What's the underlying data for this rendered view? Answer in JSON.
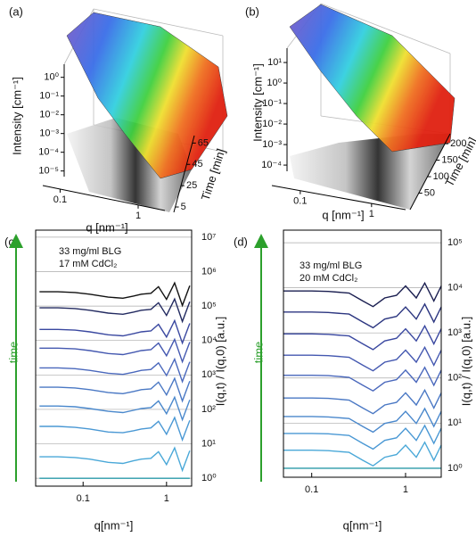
{
  "chart_data": [
    {
      "type": "surface3d",
      "panel_label": "(a)",
      "zlabel": "Intensity [cm⁻¹]",
      "xlabel": "q [nm⁻¹]",
      "ylabel": "Time [min]",
      "zscale": "log",
      "zlim": [
        5e-06,
        5
      ],
      "zticks": [
        {
          "value": 1,
          "label": "10⁰"
        },
        {
          "value": 0.1,
          "label": "10⁻¹"
        },
        {
          "value": 0.01,
          "label": "10⁻²"
        },
        {
          "value": 0.001,
          "label": "10⁻³"
        },
        {
          "value": 0.0001,
          "label": "10⁻⁴"
        },
        {
          "value": 1e-05,
          "label": "10⁻⁵"
        }
      ],
      "xscale": "log",
      "xlim": [
        0.06,
        2.2
      ],
      "xticks": [
        0.1,
        1
      ],
      "ylim": [
        0,
        72
      ],
      "yticks": [
        5,
        25,
        45,
        65
      ]
    },
    {
      "type": "surface3d",
      "panel_label": "(b)",
      "zlabel": "Intensity [cm⁻¹]",
      "xlabel": "q [nm⁻¹]",
      "ylabel": "Time [min]",
      "zscale": "log",
      "zlim": [
        5e-05,
        50
      ],
      "zticks": [
        {
          "value": 10,
          "label": "10¹"
        },
        {
          "value": 1,
          "label": "10⁰"
        },
        {
          "value": 0.1,
          "label": "10⁻¹"
        },
        {
          "value": 0.01,
          "label": "10⁻²"
        },
        {
          "value": 0.001,
          "label": "10⁻³"
        },
        {
          "value": 0.0001,
          "label": "10⁻⁴"
        }
      ],
      "xscale": "log",
      "xlim": [
        0.04,
        3
      ],
      "xticks": [
        0.1,
        1
      ],
      "ylim": [
        0,
        230
      ],
      "yticks": [
        50,
        100,
        150,
        200
      ]
    },
    {
      "type": "line",
      "panel_label": "(c)",
      "annotations": [
        "33 mg/ml BLG",
        "17 mM CdCl₂"
      ],
      "xlabel": "q[nm⁻¹]",
      "ylabel": "I(q,t) / I(q,0) [a.u.]",
      "time_label": "time",
      "xscale": "log",
      "yscale": "log",
      "grid": true,
      "xlim": [
        0.027,
        2
      ],
      "xticks": [
        0.1,
        1
      ],
      "ylim": [
        0.59,
        16000000
      ],
      "yticks": [
        {
          "value": 1,
          "label": "10⁰"
        },
        {
          "value": 10,
          "label": "10¹"
        },
        {
          "value": 100,
          "label": "10²"
        },
        {
          "value": 1000,
          "label": "10³"
        },
        {
          "value": 10000,
          "label": "10⁴"
        },
        {
          "value": 100000,
          "label": "10⁵"
        },
        {
          "value": 1000000,
          "label": "10⁶"
        },
        {
          "value": 10000000,
          "label": "10⁷"
        }
      ],
      "x": [
        0.03,
        0.05,
        0.08,
        0.12,
        0.2,
        0.3,
        0.4,
        0.5,
        0.65,
        0.8,
        1.0,
        1.25,
        1.55,
        1.9
      ],
      "series": [
        {
          "color": "#2a9aa8",
          "values": [
            1,
            1,
            1,
            1,
            1,
            1,
            1,
            1,
            1,
            1,
            1,
            1,
            1,
            1
          ]
        },
        {
          "color": "#4aa8d8",
          "values": [
            4.2,
            4.2,
            4,
            3.6,
            2.9,
            2.7,
            3.2,
            3.6,
            3.8,
            5.9,
            2.5,
            7.6,
            1.7,
            6.3
          ]
        },
        {
          "color": "#4a98d4",
          "values": [
            32,
            32,
            30,
            27,
            22,
            21,
            24,
            27,
            29,
            45,
            19,
            58,
            13,
            48
          ]
        },
        {
          "color": "#4a88cc",
          "values": [
            125,
            125,
            119,
            106,
            88,
            81,
            94,
            106,
            113,
            175,
            75,
            225,
            50,
            188
          ]
        },
        {
          "color": "#4a78c4",
          "values": [
            440,
            440,
            418,
            374,
            308,
            286,
            330,
            374,
            396,
            616,
            264,
            792,
            176,
            660
          ]
        },
        {
          "color": "#4a68bc",
          "values": [
            1600,
            1600,
            1520,
            1360,
            1120,
            1040,
            1200,
            1360,
            1440,
            2240,
            960,
            2880,
            640,
            2400
          ]
        },
        {
          "color": "#4458b0",
          "values": [
            6000,
            6000,
            5700,
            5100,
            4200,
            3900,
            4500,
            5100,
            5400,
            8400,
            3600,
            10800,
            2400,
            9000
          ]
        },
        {
          "color": "#3a48a0",
          "values": [
            21000,
            21000,
            19950,
            17850,
            14700,
            13650,
            15750,
            17850,
            18900,
            29400,
            12600,
            37800,
            8400,
            31500
          ]
        },
        {
          "color": "#222a60",
          "values": [
            89000,
            89000,
            84550,
            75650,
            62300,
            57850,
            66750,
            75650,
            80100,
            124600,
            53400,
            160200,
            35600,
            133500
          ]
        },
        {
          "color": "#111111",
          "values": [
            260000,
            260000,
            247000,
            221000,
            182000,
            169000,
            195000,
            221000,
            234000,
            364000,
            156000,
            468000,
            104000,
            390000
          ]
        }
      ]
    },
    {
      "type": "line",
      "panel_label": "(d)",
      "annotations": [
        "33 mg/ml BLG",
        "20 mM CdCl₂"
      ],
      "xlabel": "q[nm⁻¹]",
      "ylabel": "I(q,t) / I(q,0) [a.u.]",
      "time_label": "time",
      "xscale": "log",
      "yscale": "log",
      "grid": true,
      "xlim": [
        0.05,
        2.4
      ],
      "xticks": [
        0.1,
        1
      ],
      "ylim": [
        0.63,
        190000
      ],
      "yticks": [
        {
          "value": 1,
          "label": "10⁰"
        },
        {
          "value": 10,
          "label": "10¹"
        },
        {
          "value": 100,
          "label": "10²"
        },
        {
          "value": 1000,
          "label": "10³"
        },
        {
          "value": 10000,
          "label": "10⁴"
        },
        {
          "value": 100000,
          "label": "10⁵"
        }
      ],
      "x": [
        0.05,
        0.07,
        0.1,
        0.15,
        0.25,
        0.35,
        0.45,
        0.6,
        0.8,
        1.0,
        1.3,
        1.6,
        2,
        2.4
      ],
      "series": [
        {
          "color": "#2a9aa8",
          "values": [
            1,
            1,
            1,
            1,
            1,
            1,
            1,
            1,
            1,
            1,
            1,
            1,
            1,
            1
          ]
        },
        {
          "color": "#4aa8d8",
          "values": [
            2.5,
            2.5,
            2.5,
            2.45,
            2.25,
            1.5,
            1.13,
            1.75,
            2,
            3.25,
            1.75,
            3.75,
            1.5,
            3.25
          ]
        },
        {
          "color": "#4a98d4",
          "values": [
            5.9,
            5.9,
            5.9,
            5.78,
            5.31,
            3.54,
            2.66,
            4.13,
            4.72,
            7.67,
            4.13,
            8.85,
            3.54,
            7.67
          ]
        },
        {
          "color": "#4a88cc",
          "values": [
            14,
            14,
            14,
            13.7,
            12.6,
            8.4,
            6.3,
            9.8,
            11.2,
            18.2,
            9.8,
            21,
            8.4,
            18.2
          ]
        },
        {
          "color": "#4a78c4",
          "values": [
            36,
            36,
            36,
            35.3,
            32.4,
            21.6,
            16.2,
            25.2,
            28.8,
            46.8,
            25.2,
            54,
            21.6,
            46.8
          ]
        },
        {
          "color": "#4a68bc",
          "values": [
            115,
            115,
            115,
            112.7,
            103.5,
            69,
            51.75,
            80.5,
            92,
            149.5,
            80.5,
            172.5,
            69,
            149.5
          ]
        },
        {
          "color": "#4458b0",
          "values": [
            320,
            320,
            320,
            313.6,
            288,
            192,
            144,
            224,
            256,
            416,
            224,
            480,
            192,
            416
          ]
        },
        {
          "color": "#3a48a0",
          "values": [
            950,
            950,
            950,
            931,
            855,
            570,
            427.5,
            665,
            760,
            1235,
            665,
            1425,
            570,
            1235
          ]
        },
        {
          "color": "#2c3680",
          "values": [
            2900,
            2900,
            2900,
            2842,
            2610,
            1740,
            1305,
            2030,
            2320,
            3770,
            2030,
            4350,
            1740,
            3770
          ]
        },
        {
          "color": "#1a1e50",
          "values": [
            8500,
            8500,
            8500,
            8330,
            7650,
            5100,
            3825,
            5950,
            6800,
            11050,
            5950,
            12750,
            5100,
            11050
          ]
        }
      ]
    }
  ]
}
